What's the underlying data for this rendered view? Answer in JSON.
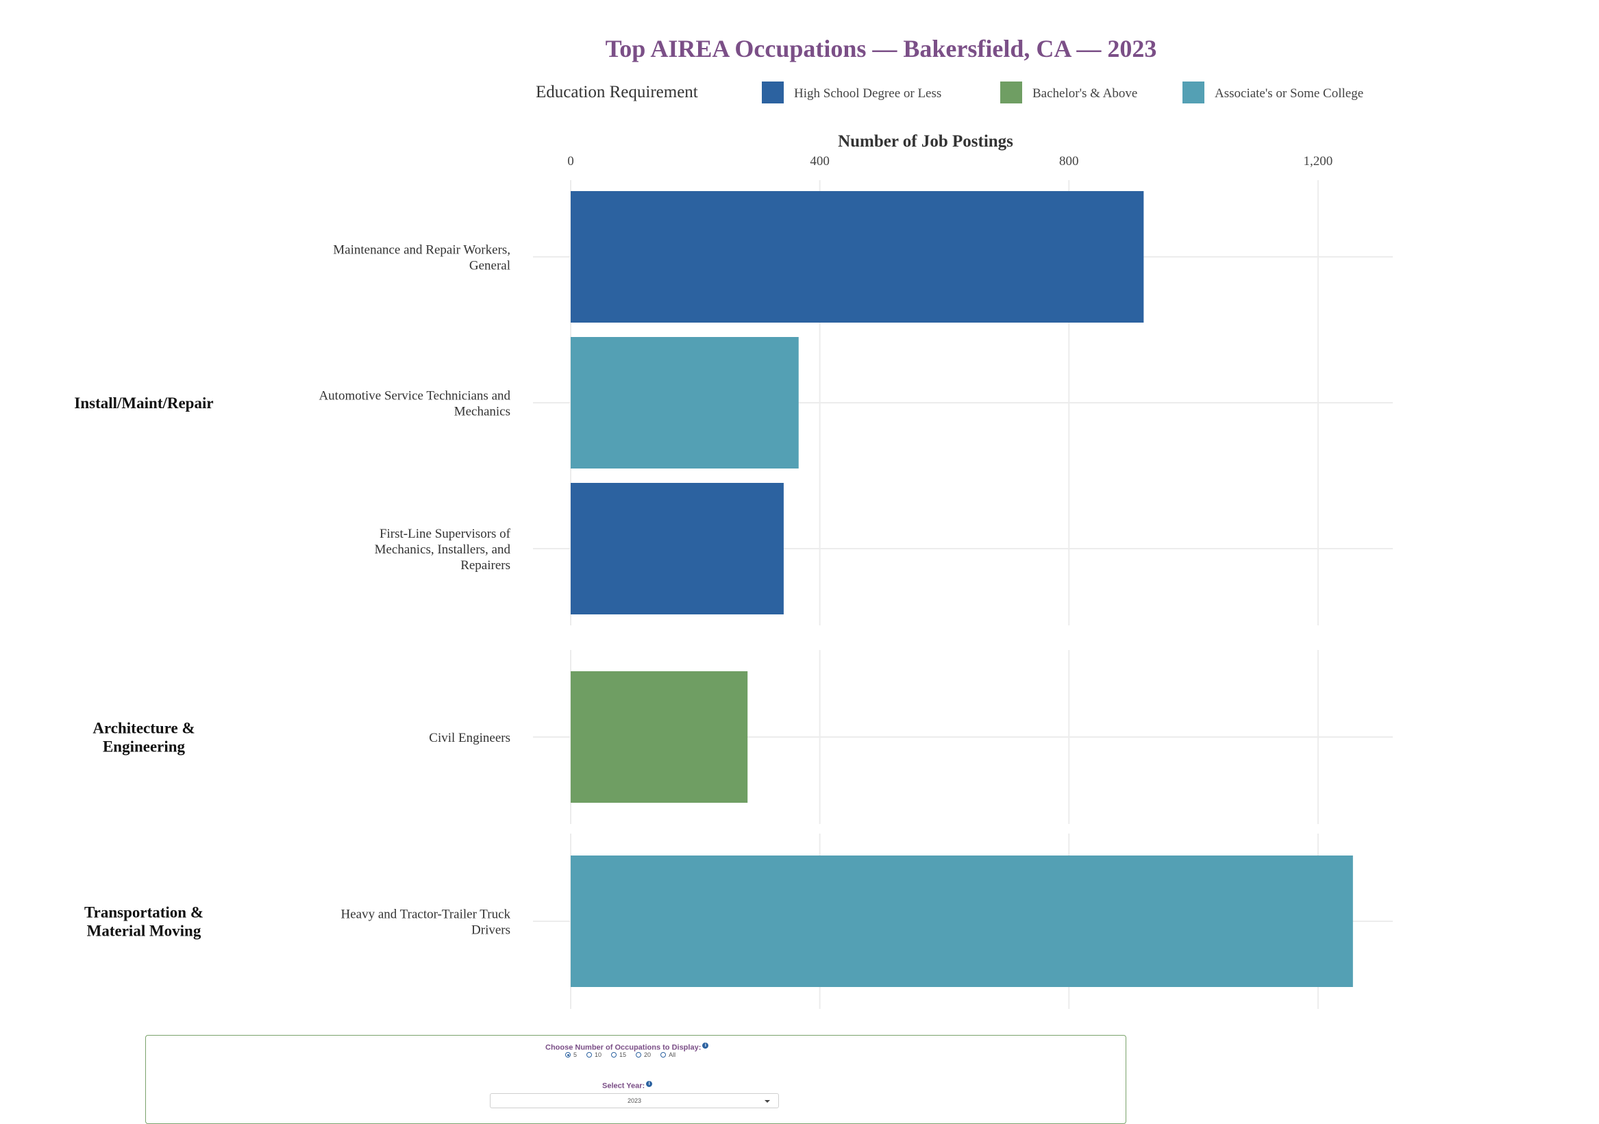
{
  "chart_data": {
    "type": "bar",
    "orientation": "horizontal",
    "title": "Top AIREA Occupations — Bakersfield, CA — 2023",
    "xlabel": "Number of Job Postings",
    "xlim": [
      0,
      1320
    ],
    "xticks": [
      0,
      400,
      800,
      1200
    ],
    "xtick_labels": [
      "0",
      "400",
      "800",
      "1,200"
    ],
    "grid": true,
    "legend": {
      "title": "Education Requirement",
      "placement": "top",
      "items": [
        {
          "label": "High School Degree or Less",
          "color": "#2c62a0"
        },
        {
          "label": "Bachelor's & Above",
          "color": "#6f9e63"
        },
        {
          "label": "Associate's or Some College",
          "color": "#54a0b4"
        }
      ]
    },
    "groups": [
      {
        "name_lines": [
          "Install/Maint/Repair"
        ],
        "bars": [
          {
            "label_lines": [
              "Maintenance and Repair Workers,",
              "General"
            ],
            "value": 920,
            "education": "High School Degree or Less",
            "color": "#2c62a0"
          },
          {
            "label_lines": [
              "Automotive Service Technicians and",
              "Mechanics"
            ],
            "value": 366,
            "education": "Associate's or Some College",
            "color": "#54a0b4"
          },
          {
            "label_lines": [
              "First-Line Supervisors of",
              "Mechanics, Installers, and",
              "Repairers"
            ],
            "value": 342,
            "education": "High School Degree or Less",
            "color": "#2c62a0"
          }
        ]
      },
      {
        "name_lines": [
          "Architecture &",
          "Engineering"
        ],
        "bars": [
          {
            "label_lines": [
              "Civil Engineers"
            ],
            "value": 284,
            "education": "Bachelor's & Above",
            "color": "#6f9e63"
          }
        ]
      },
      {
        "name_lines": [
          "Transportation &",
          "Material Moving"
        ],
        "bars": [
          {
            "label_lines": [
              "Heavy and Tractor-Trailer Truck",
              "Drivers"
            ],
            "value": 1256,
            "education": "Associate's or Some College",
            "color": "#54a0b4"
          }
        ]
      }
    ]
  },
  "controls": {
    "count_label": "Choose Number of Occupations to Display:",
    "count_options": [
      "5",
      "10",
      "15",
      "20",
      "All"
    ],
    "count_selected": "5",
    "year_label": "Select Year:",
    "year_value": "2023",
    "info_glyph": "i"
  }
}
